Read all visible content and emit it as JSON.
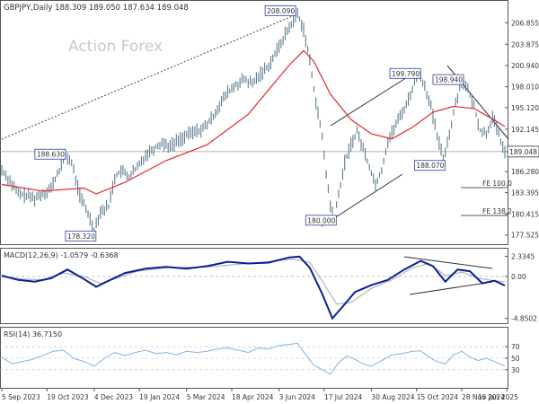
{
  "header": {
    "symbol_line": "GBPJPY,Daily  188.309 189.050 187.634 189.048",
    "watermark": "Action Forex"
  },
  "chart_data": {
    "type": "line",
    "symbol": "GBPJPY",
    "timeframe": "Daily",
    "ohlc_last": {
      "open": 188.309,
      "high": 189.05,
      "low": 187.634,
      "close": 189.048
    },
    "last_price_label": "189.048",
    "x_ticks": [
      "5 Sep 2023",
      "19 Oct 2023",
      "4 Dec 2023",
      "19 Jan 2024",
      "5 Mar 2024",
      "18 Apr 2024",
      "3 Jun 2024",
      "17 Jul 2024",
      "30 Aug 2024",
      "15 Oct 2024",
      "28 Nov 2024",
      "15 Jan 2025"
    ],
    "price_panel": {
      "ylim": [
        176.5,
        209.5
      ],
      "y_ticks": [
        "206.855",
        "203.875",
        "200.940",
        "198.010",
        "195.120",
        "192.145",
        "189.048",
        "186.280",
        "183.395",
        "180.415",
        "177.525"
      ],
      "annotations": [
        "208.090",
        "199.790",
        "198.940",
        "188.630",
        "188.070",
        "178.320",
        "180.000"
      ],
      "fib_labels": [
        "FE 100.0",
        "FE 138.2"
      ],
      "price_points": [
        [
          0,
          186.5
        ],
        [
          4,
          185.0
        ],
        [
          8,
          183.2
        ],
        [
          12,
          183.0
        ],
        [
          16,
          182.6
        ],
        [
          20,
          183.3
        ],
        [
          24,
          184.0
        ],
        [
          28,
          186.5
        ],
        [
          31,
          188.63
        ],
        [
          34,
          187.5
        ],
        [
          38,
          183.0
        ],
        [
          42,
          180.5
        ],
        [
          45,
          178.32
        ],
        [
          48,
          180.8
        ],
        [
          52,
          181.5
        ],
        [
          55,
          185.5
        ],
        [
          58,
          186.4
        ],
        [
          62,
          185.6
        ],
        [
          66,
          186.8
        ],
        [
          70,
          188.6
        ],
        [
          74,
          189.5
        ],
        [
          78,
          190.3
        ],
        [
          82,
          189.8
        ],
        [
          86,
          190.6
        ],
        [
          90,
          191.3
        ],
        [
          94,
          191.8
        ],
        [
          98,
          192.2
        ],
        [
          102,
          193.5
        ],
        [
          106,
          195.5
        ],
        [
          110,
          197.2
        ],
        [
          114,
          198.2
        ],
        [
          118,
          199.0
        ],
        [
          122,
          198.4
        ],
        [
          126,
          199.8
        ],
        [
          130,
          201.0
        ],
        [
          134,
          203.0
        ],
        [
          138,
          205.2
        ],
        [
          141,
          206.7
        ],
        [
          144,
          208.09
        ],
        [
          147,
          206.0
        ],
        [
          150,
          201.5
        ],
        [
          153,
          196.0
        ],
        [
          156,
          191.0
        ],
        [
          158,
          186.0
        ],
        [
          160,
          181.5
        ],
        [
          162,
          180.0
        ],
        [
          164,
          183.0
        ],
        [
          167,
          187.5
        ],
        [
          170,
          190.0
        ],
        [
          173,
          191.8
        ],
        [
          176,
          189.5
        ],
        [
          179,
          187.0
        ],
        [
          182,
          184.5
        ],
        [
          185,
          186.5
        ],
        [
          188,
          190.5
        ],
        [
          191,
          192.2
        ],
        [
          194,
          194.0
        ],
        [
          197,
          195.5
        ],
        [
          200,
          197.8
        ],
        [
          203,
          199.79
        ],
        [
          206,
          198.2
        ],
        [
          209,
          195.2
        ],
        [
          212,
          191.2
        ],
        [
          215,
          188.07
        ],
        [
          218,
          191.5
        ],
        [
          221,
          195.8
        ],
        [
          224,
          198.94
        ],
        [
          227,
          197.5
        ],
        [
          230,
          195.3
        ],
        [
          233,
          192.0
        ],
        [
          236,
          191.5
        ],
        [
          239,
          193.8
        ],
        [
          241,
          192.2
        ],
        [
          243,
          190.5
        ],
        [
          245,
          189.048
        ]
      ],
      "ema_points": [
        [
          0,
          184.5
        ],
        [
          20,
          183.6
        ],
        [
          40,
          184.0
        ],
        [
          46,
          183.2
        ],
        [
          60,
          184.8
        ],
        [
          80,
          187.8
        ],
        [
          100,
          190.0
        ],
        [
          120,
          194.2
        ],
        [
          140,
          201.0
        ],
        [
          147,
          203.0
        ],
        [
          152,
          201.5
        ],
        [
          160,
          197.0
        ],
        [
          170,
          193.5
        ],
        [
          180,
          191.5
        ],
        [
          190,
          190.8
        ],
        [
          200,
          192.4
        ],
        [
          210,
          194.5
        ],
        [
          220,
          195.3
        ],
        [
          230,
          195.0
        ],
        [
          240,
          193.4
        ],
        [
          245,
          192.5
        ]
      ]
    },
    "macd_panel": {
      "label": "MACD(12,26,9) -1.0579 -0.6368",
      "ylim": [
        -5.2,
        2.9
      ],
      "y_ticks": [
        "2.3345",
        "0.00",
        "-4.8502"
      ],
      "macd_points": [
        [
          0,
          0.1
        ],
        [
          8,
          -0.4
        ],
        [
          16,
          -0.6
        ],
        [
          24,
          -0.2
        ],
        [
          32,
          0.8
        ],
        [
          40,
          -0.3
        ],
        [
          46,
          -1.2
        ],
        [
          52,
          -0.5
        ],
        [
          60,
          0.4
        ],
        [
          70,
          0.9
        ],
        [
          80,
          1.1
        ],
        [
          90,
          0.9
        ],
        [
          100,
          1.2
        ],
        [
          110,
          1.7
        ],
        [
          120,
          1.5
        ],
        [
          130,
          1.6
        ],
        [
          140,
          2.2
        ],
        [
          145,
          2.3
        ],
        [
          150,
          1.0
        ],
        [
          156,
          -2.0
        ],
        [
          161,
          -4.85
        ],
        [
          166,
          -3.5
        ],
        [
          172,
          -1.8
        ],
        [
          180,
          -1.0
        ],
        [
          188,
          -0.4
        ],
        [
          196,
          0.8
        ],
        [
          204,
          1.8
        ],
        [
          210,
          1.2
        ],
        [
          216,
          -0.6
        ],
        [
          222,
          0.8
        ],
        [
          228,
          0.6
        ],
        [
          234,
          -0.8
        ],
        [
          240,
          -0.5
        ],
        [
          245,
          -1.0579
        ]
      ],
      "signal_points": [
        [
          0,
          0.0
        ],
        [
          10,
          -0.3
        ],
        [
          20,
          -0.4
        ],
        [
          30,
          0.4
        ],
        [
          40,
          0.0
        ],
        [
          48,
          -0.8
        ],
        [
          56,
          -0.2
        ],
        [
          66,
          0.6
        ],
        [
          80,
          1.0
        ],
        [
          100,
          1.1
        ],
        [
          120,
          1.5
        ],
        [
          142,
          2.0
        ],
        [
          150,
          1.6
        ],
        [
          156,
          -0.5
        ],
        [
          163,
          -3.2
        ],
        [
          170,
          -3.0
        ],
        [
          180,
          -1.4
        ],
        [
          190,
          -0.4
        ],
        [
          200,
          1.0
        ],
        [
          208,
          1.5
        ],
        [
          216,
          0.1
        ],
        [
          224,
          0.5
        ],
        [
          232,
          -0.2
        ],
        [
          240,
          -0.5
        ],
        [
          245,
          -0.6368
        ]
      ]
    },
    "rsi_panel": {
      "label": "RSI(14) 36.7150",
      "ylim": [
        0,
        100
      ],
      "y_ticks": [
        "70",
        "50",
        "30"
      ],
      "rsi_points": [
        [
          0,
          52
        ],
        [
          5,
          40
        ],
        [
          10,
          44
        ],
        [
          15,
          48
        ],
        [
          20,
          55
        ],
        [
          25,
          62
        ],
        [
          30,
          64
        ],
        [
          35,
          50
        ],
        [
          40,
          44
        ],
        [
          45,
          36
        ],
        [
          50,
          50
        ],
        [
          55,
          60
        ],
        [
          60,
          55
        ],
        [
          65,
          60
        ],
        [
          70,
          64
        ],
        [
          75,
          58
        ],
        [
          80,
          60
        ],
        [
          85,
          56
        ],
        [
          90,
          62
        ],
        [
          95,
          60
        ],
        [
          100,
          62
        ],
        [
          105,
          66
        ],
        [
          110,
          68
        ],
        [
          115,
          64
        ],
        [
          120,
          60
        ],
        [
          125,
          68
        ],
        [
          130,
          66
        ],
        [
          135,
          72
        ],
        [
          140,
          74
        ],
        [
          144,
          76
        ],
        [
          148,
          56
        ],
        [
          152,
          38
        ],
        [
          156,
          30
        ],
        [
          160,
          22
        ],
        [
          164,
          42
        ],
        [
          168,
          54
        ],
        [
          172,
          48
        ],
        [
          176,
          40
        ],
        [
          180,
          36
        ],
        [
          185,
          46
        ],
        [
          190,
          56
        ],
        [
          195,
          58
        ],
        [
          200,
          62
        ],
        [
          204,
          63
        ],
        [
          208,
          52
        ],
        [
          212,
          44
        ],
        [
          216,
          40
        ],
        [
          220,
          56
        ],
        [
          224,
          62
        ],
        [
          228,
          52
        ],
        [
          232,
          46
        ],
        [
          236,
          50
        ],
        [
          240,
          44
        ],
        [
          245,
          36.715
        ]
      ]
    }
  }
}
